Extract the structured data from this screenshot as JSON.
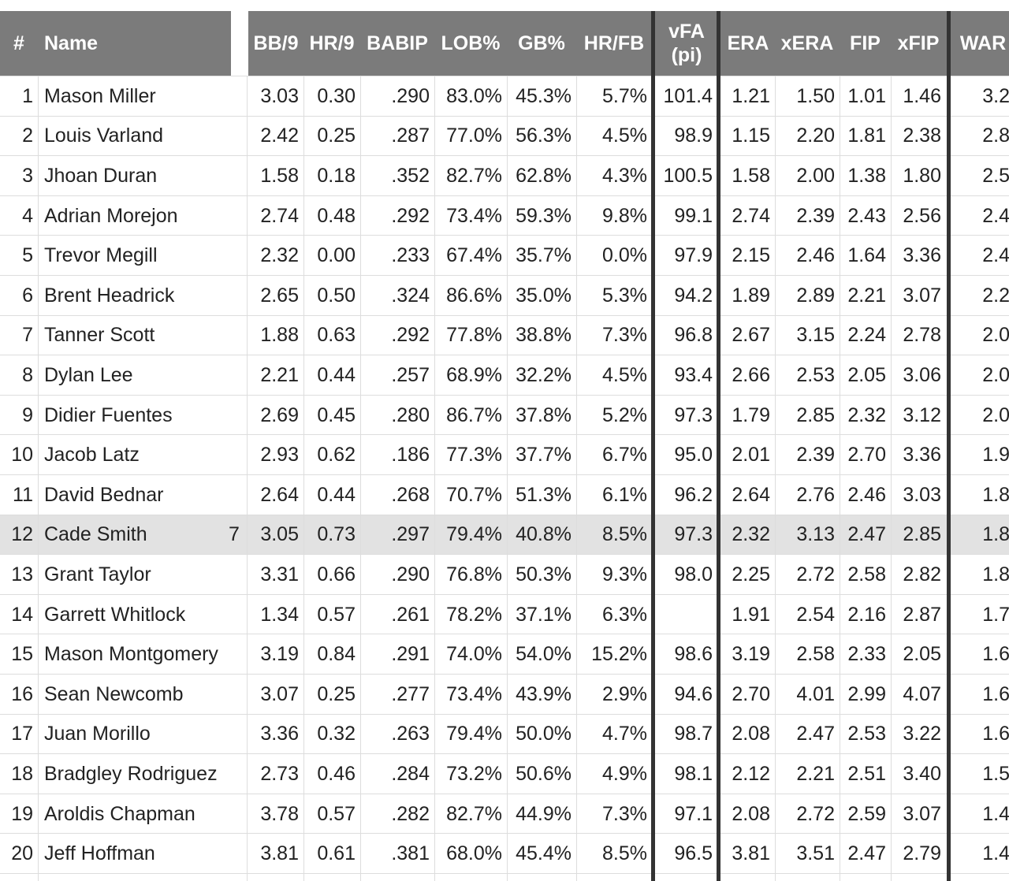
{
  "table": {
    "headers": [
      "#",
      "Name",
      "BB/9",
      "HR/9",
      "BABIP",
      "LOB%",
      "GB%",
      "HR/FB",
      "vFA (pi)",
      "ERA",
      "xERA",
      "FIP",
      "xFIP",
      "WAR"
    ],
    "rows": [
      [
        "1",
        "Mason Miller",
        "3.03",
        "0.30",
        ".290",
        "83.0%",
        "45.3%",
        "5.7%",
        "101.4",
        "1.21",
        "1.50",
        "1.01",
        "1.46",
        "3.2"
      ],
      [
        "2",
        "Louis Varland",
        "2.42",
        "0.25",
        ".287",
        "77.0%",
        "56.3%",
        "4.5%",
        "98.9",
        "1.15",
        "2.20",
        "1.81",
        "2.38",
        "2.8"
      ],
      [
        "3",
        "Jhoan Duran",
        "1.58",
        "0.18",
        ".352",
        "82.7%",
        "62.8%",
        "4.3%",
        "100.5",
        "1.58",
        "2.00",
        "1.38",
        "1.80",
        "2.5"
      ],
      [
        "4",
        "Adrian Morejon",
        "2.74",
        "0.48",
        ".292",
        "73.4%",
        "59.3%",
        "9.8%",
        "99.1",
        "2.74",
        "2.39",
        "2.43",
        "2.56",
        "2.4"
      ],
      [
        "5",
        "Trevor Megill",
        "2.32",
        "0.00",
        ".233",
        "67.4%",
        "35.7%",
        "0.0%",
        "97.9",
        "2.15",
        "2.46",
        "1.64",
        "3.36",
        "2.4"
      ],
      [
        "6",
        "Brent Headrick",
        "2.65",
        "0.50",
        ".324",
        "86.6%",
        "35.0%",
        "5.3%",
        "94.2",
        "1.89",
        "2.89",
        "2.21",
        "3.07",
        "2.2"
      ],
      [
        "7",
        "Tanner Scott",
        "1.88",
        "0.63",
        ".292",
        "77.8%",
        "38.8%",
        "7.3%",
        "96.8",
        "2.67",
        "3.15",
        "2.24",
        "2.78",
        "2.0"
      ],
      [
        "8",
        "Dylan Lee",
        "2.21",
        "0.44",
        ".257",
        "68.9%",
        "32.2%",
        "4.5%",
        "93.4",
        "2.66",
        "2.53",
        "2.05",
        "3.06",
        "2.0"
      ],
      [
        "9",
        "Didier Fuentes",
        "2.69",
        "0.45",
        ".280",
        "86.7%",
        "37.8%",
        "5.2%",
        "97.3",
        "1.79",
        "2.85",
        "2.32",
        "3.12",
        "2.0"
      ],
      [
        "10",
        "Jacob Latz",
        "2.93",
        "0.62",
        ".186",
        "77.3%",
        "37.7%",
        "6.7%",
        "95.0",
        "2.01",
        "2.39",
        "2.70",
        "3.36",
        "1.9"
      ],
      [
        "11",
        "David Bednar",
        "2.64",
        "0.44",
        ".268",
        "70.7%",
        "51.3%",
        "6.1%",
        "96.2",
        "2.64",
        "2.76",
        "2.46",
        "3.03",
        "1.8"
      ],
      [
        "12",
        "Cade Smith",
        "3.05",
        "0.73",
        ".297",
        "79.4%",
        "40.8%",
        "8.5%",
        "97.3",
        "2.32",
        "3.13",
        "2.47",
        "2.85",
        "1.8"
      ],
      [
        "13",
        "Grant Taylor",
        "3.31",
        "0.66",
        ".290",
        "76.8%",
        "50.3%",
        "9.3%",
        "98.0",
        "2.25",
        "2.72",
        "2.58",
        "2.82",
        "1.8"
      ],
      [
        "14",
        "Garrett Whitlock",
        "1.34",
        "0.57",
        ".261",
        "78.2%",
        "37.1%",
        "6.3%",
        null,
        "1.91",
        "2.54",
        "2.16",
        "2.87",
        "1.7"
      ],
      [
        "15",
        "Mason Montgomery",
        "3.19",
        "0.84",
        ".291",
        "74.0%",
        "54.0%",
        "15.2%",
        "98.6",
        "3.19",
        "2.58",
        "2.33",
        "2.05",
        "1.6"
      ],
      [
        "16",
        "Sean Newcomb",
        "3.07",
        "0.25",
        ".277",
        "73.4%",
        "43.9%",
        "2.9%",
        "94.6",
        "2.70",
        "4.01",
        "2.99",
        "4.07",
        "1.6"
      ],
      [
        "17",
        "Juan Morillo",
        "3.36",
        "0.32",
        ".263",
        "79.4%",
        "50.0%",
        "4.7%",
        "98.7",
        "2.08",
        "2.47",
        "2.53",
        "3.22",
        "1.6"
      ],
      [
        "18",
        "Bradgley Rodriguez",
        "2.73",
        "0.46",
        ".284",
        "73.2%",
        "50.6%",
        "4.9%",
        "98.1",
        "2.12",
        "2.21",
        "2.51",
        "3.40",
        "1.5"
      ],
      [
        "19",
        "Aroldis Chapman",
        "3.78",
        "0.57",
        ".282",
        "82.7%",
        "44.9%",
        "7.3%",
        "97.1",
        "2.08",
        "2.72",
        "2.59",
        "3.07",
        "1.4"
      ],
      [
        "20",
        "Jeff Hoffman",
        "3.81",
        "0.61",
        ".381",
        "68.0%",
        "45.4%",
        "8.5%",
        "96.5",
        "3.81",
        "3.51",
        "2.47",
        "2.79",
        "1.4"
      ]
    ],
    "highlighted_row": 12,
    "stray_text": "7"
  }
}
